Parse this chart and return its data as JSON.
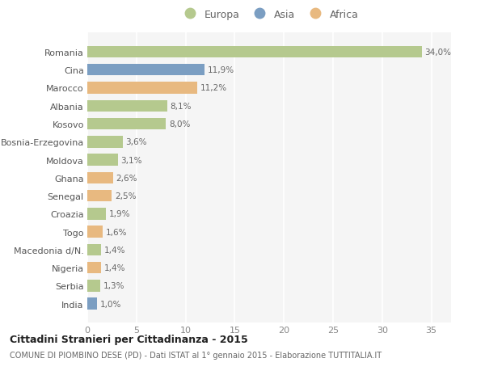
{
  "categories": [
    "Romania",
    "Cina",
    "Marocco",
    "Albania",
    "Kosovo",
    "Bosnia-Erzegovina",
    "Moldova",
    "Ghana",
    "Senegal",
    "Croazia",
    "Togo",
    "Macedonia d/N.",
    "Nigeria",
    "Serbia",
    "India"
  ],
  "values": [
    34.0,
    11.9,
    11.2,
    8.1,
    8.0,
    3.6,
    3.1,
    2.6,
    2.5,
    1.9,
    1.6,
    1.4,
    1.4,
    1.3,
    1.0
  ],
  "continents": [
    "Europa",
    "Asia",
    "Africa",
    "Europa",
    "Europa",
    "Europa",
    "Europa",
    "Africa",
    "Africa",
    "Europa",
    "Africa",
    "Europa",
    "Africa",
    "Europa",
    "Asia"
  ],
  "labels": [
    "34,0%",
    "11,9%",
    "11,2%",
    "8,1%",
    "8,0%",
    "3,6%",
    "3,1%",
    "2,6%",
    "2,5%",
    "1,9%",
    "1,6%",
    "1,4%",
    "1,4%",
    "1,3%",
    "1,0%"
  ],
  "colors": {
    "Europa": "#b5c98e",
    "Asia": "#7b9ec2",
    "Africa": "#e8b980"
  },
  "background_color": "#ffffff",
  "plot_bg_color": "#f5f5f5",
  "grid_color": "#ffffff",
  "title": "Cittadini Stranieri per Cittadinanza - 2015",
  "subtitle": "COMUNE DI PIOMBINO DESE (PD) - Dati ISTAT al 1° gennaio 2015 - Elaborazione TUTTITALIA.IT",
  "xlim": [
    0,
    37
  ],
  "xticks": [
    0,
    5,
    10,
    15,
    20,
    25,
    30,
    35
  ]
}
